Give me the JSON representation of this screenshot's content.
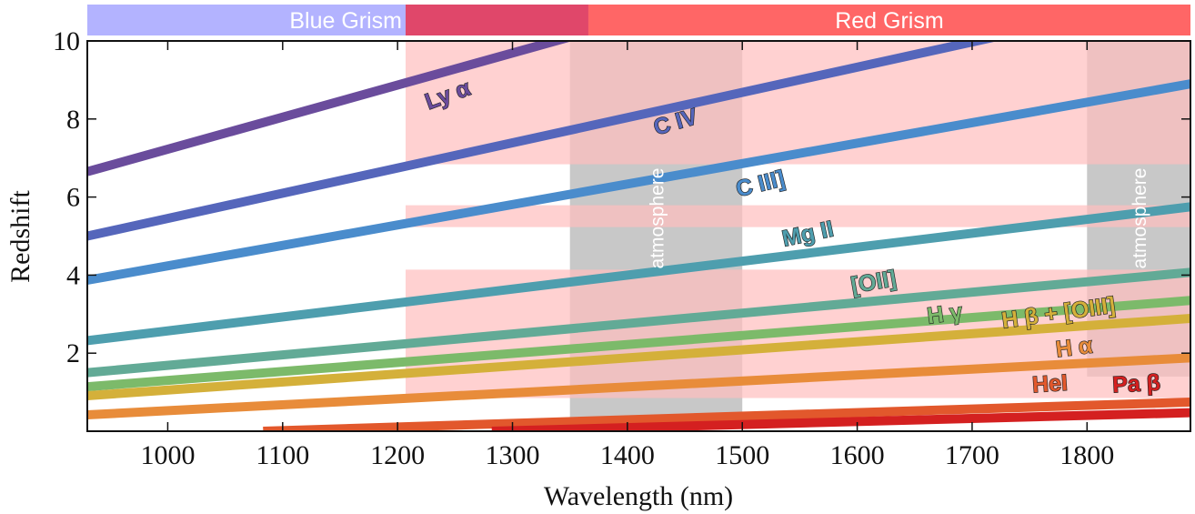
{
  "chart_data": {
    "type": "line",
    "x_label": "Wavelength (nm)",
    "y_label": "Redshift",
    "xlim": [
      930,
      1890
    ],
    "ylim": [
      0,
      10
    ],
    "xticks": [
      1000,
      1100,
      1200,
      1300,
      1400,
      1500,
      1600,
      1700,
      1800
    ],
    "yticks": [
      2,
      4,
      6,
      8,
      10
    ],
    "grisms": [
      {
        "name": "Blue Grism",
        "color": "#b3b3ff",
        "xlim": [
          930,
          1366
        ]
      },
      {
        "name": "Red Grism",
        "color": "#ff6666",
        "xlim": [
          1207,
          1890
        ]
      }
    ],
    "grism_overlap_color": "#e0476a",
    "shaded_color": "#ffbdbd",
    "shaded_regions": [
      {
        "xlim": [
          1207,
          1890
        ],
        "ylim": [
          6.84,
          10
        ]
      },
      {
        "xlim": [
          1207,
          1890
        ],
        "ylim": [
          5.23,
          5.79
        ]
      },
      {
        "xlim": [
          1207,
          1890
        ],
        "ylim": [
          0.85,
          4.14
        ]
      }
    ],
    "atmosphere_color": "#c8c8c8",
    "atmosphere_bands": [
      {
        "label": "atmosphere",
        "xlim": [
          1350,
          1500
        ],
        "ylim": [
          0.33,
          10
        ]
      },
      {
        "label": "atmosphere",
        "xlim": [
          1800,
          1890
        ],
        "ylim": [
          1.4,
          10
        ]
      }
    ],
    "series": [
      {
        "name": "Ly α",
        "color": "#6a4c9c",
        "x": [
          930,
          1890
        ],
        "values": [
          6.65,
          14.54
        ]
      },
      {
        "name": "C IV",
        "color": "#5566bb",
        "x": [
          930,
          1890
        ],
        "values": [
          5.0,
          11.2
        ]
      },
      {
        "name": "C III]",
        "color": "#4a8ccc",
        "x": [
          930,
          1890
        ],
        "values": [
          3.87,
          8.9
        ]
      },
      {
        "name": "Mg II",
        "color": "#4e9eae",
        "x": [
          930,
          1890
        ],
        "values": [
          2.32,
          5.75
        ]
      },
      {
        "name": "[OII]",
        "color": "#62aa96",
        "x": [
          930,
          1890
        ],
        "values": [
          1.5,
          4.07
        ]
      },
      {
        "name": "H γ",
        "color": "#7cba6a",
        "x": [
          930,
          1890
        ],
        "values": [
          1.14,
          3.35
        ]
      },
      {
        "name": "H β + [OIII]",
        "color": "#d4b03a",
        "x": [
          930,
          1890
        ],
        "values": [
          0.91,
          2.89
        ]
      },
      {
        "name": "H α",
        "color": "#e88c3a",
        "x": [
          930,
          1890
        ],
        "values": [
          0.42,
          1.88
        ]
      },
      {
        "name": "HeI",
        "color": "#e2582c",
        "x": [
          1083,
          1890
        ],
        "values": [
          0,
          0.745
        ]
      },
      {
        "name": "Pa β",
        "color": "#d42020",
        "x": [
          1282,
          1890
        ],
        "values": [
          0,
          0.474
        ]
      }
    ]
  }
}
